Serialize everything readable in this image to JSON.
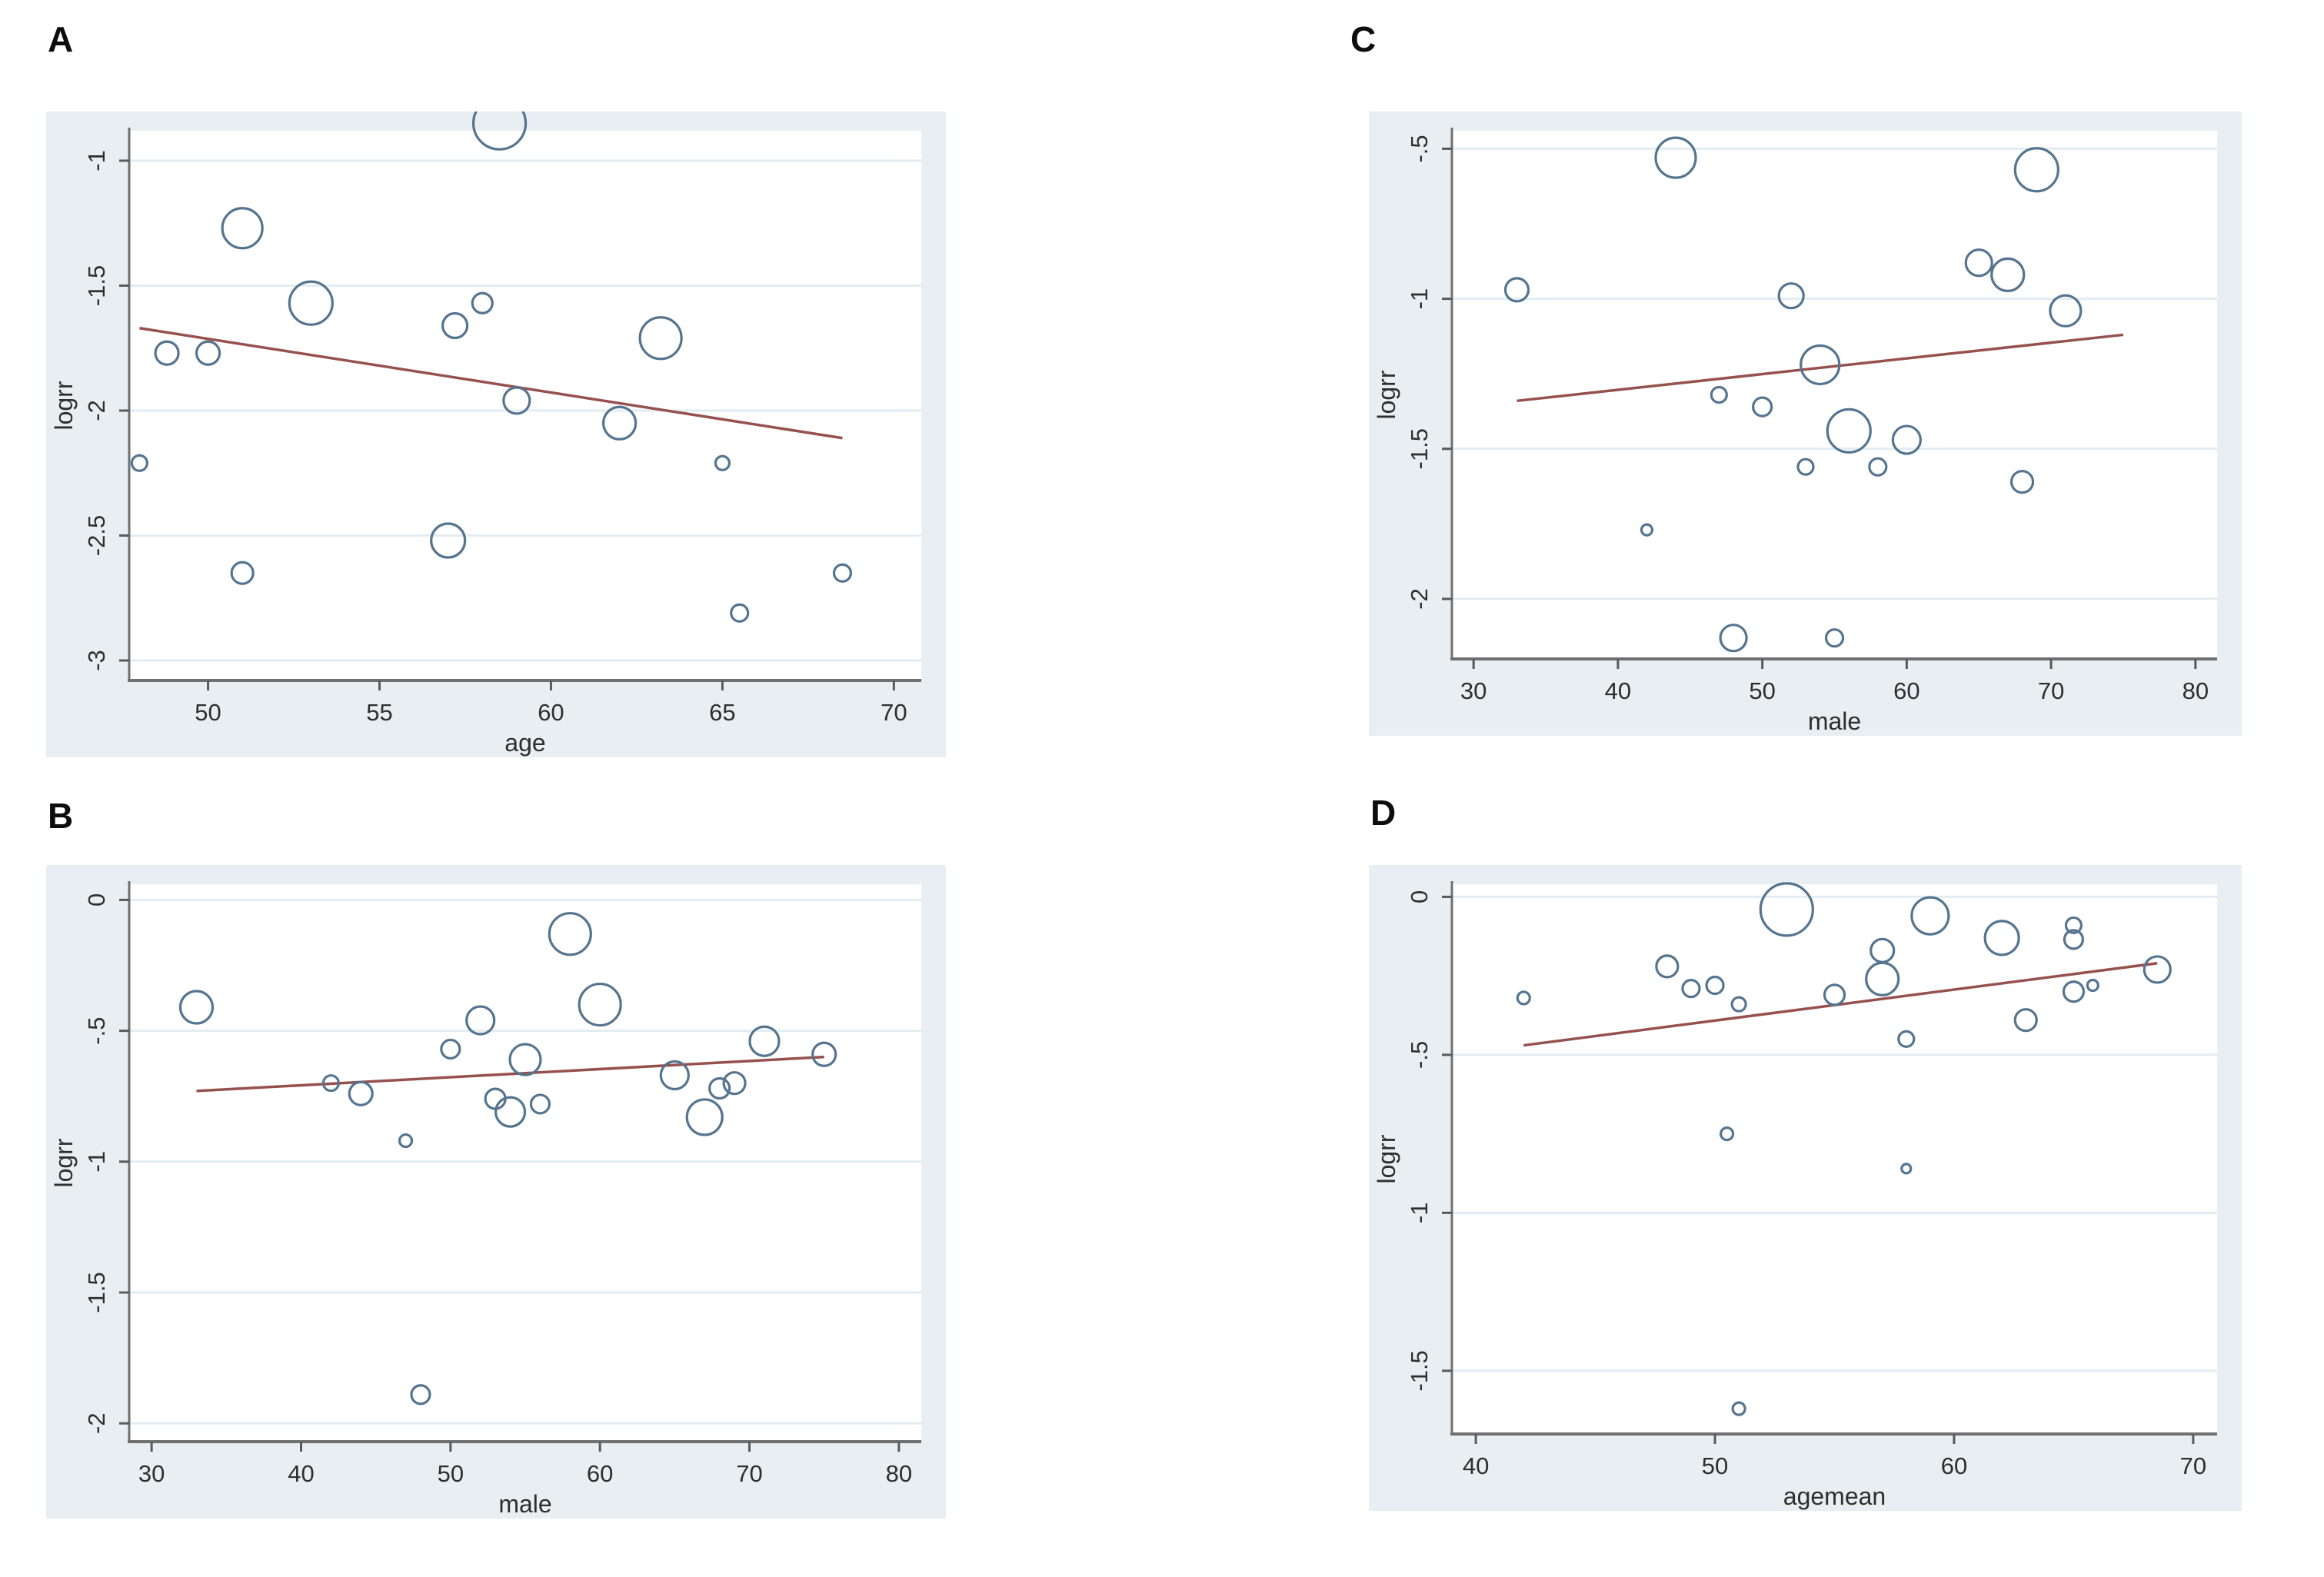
{
  "figure": {
    "description": "Four-panel meta-regression bubble plot (Stata style)",
    "panels": [
      "A",
      "B",
      "C",
      "D"
    ]
  },
  "colors": {
    "panel_background": "#e8eef1",
    "plot_background": "#ffffff",
    "grid_line": "#e2edf3",
    "axis_line": "#707070",
    "tick_mark": "#5a5a5a",
    "tick_text": "#2e2e2e",
    "axis_title_text": "#2e2e2e",
    "bubble_stroke": "#55748f",
    "regression_line": "#96514f",
    "panel_letter": "#0d0d0d"
  },
  "chart_data": [
    {
      "id": "A",
      "panel_label": "A",
      "type": "scatter",
      "subtype": "bubble",
      "title": "",
      "xlabel": "age",
      "ylabel": "logrr",
      "xlim": [
        47.7,
        70.8
      ],
      "ylim": [
        -3.08,
        -0.88
      ],
      "xticks": [
        50,
        55,
        60,
        65,
        70
      ],
      "ytick_values": [
        -1,
        -1.5,
        -2,
        -2.5,
        -3
      ],
      "ytick_labels": [
        "-1",
        "-1.5",
        "-2",
        "-2.5",
        "-3"
      ],
      "grid": true,
      "legend": "none",
      "regression": {
        "x": [
          48,
          68.5
        ],
        "y": [
          -1.67,
          -2.11
        ]
      },
      "bubbles": [
        [
          58.5,
          -0.85,
          34
        ],
        [
          51,
          -1.27,
          26
        ],
        [
          53,
          -1.57,
          28
        ],
        [
          58,
          -1.57,
          13
        ],
        [
          57.2,
          -1.66,
          16
        ],
        [
          63.2,
          -1.71,
          27
        ],
        [
          48.8,
          -1.77,
          15
        ],
        [
          50,
          -1.77,
          15
        ],
        [
          59,
          -1.96,
          17
        ],
        [
          62,
          -2.05,
          21
        ],
        [
          48,
          -2.21,
          10
        ],
        [
          65,
          -2.21,
          9
        ],
        [
          57,
          -2.52,
          22
        ],
        [
          51,
          -2.65,
          14
        ],
        [
          65.5,
          -2.81,
          11
        ],
        [
          68.5,
          -2.65,
          11
        ]
      ]
    },
    {
      "id": "B",
      "panel_label": "B",
      "type": "scatter",
      "subtype": "bubble",
      "title": "",
      "xlabel": "male",
      "ylabel": "logrr",
      "xlim": [
        28.5,
        81.5
      ],
      "ylim": [
        -2.07,
        0.06
      ],
      "xticks": [
        30,
        40,
        50,
        60,
        70,
        80
      ],
      "ytick_values": [
        0,
        -0.5,
        -1,
        -1.5,
        -2
      ],
      "ytick_labels": [
        "0",
        "-.5",
        "-1",
        "-1.5",
        "-2"
      ],
      "grid": true,
      "legend": "none",
      "regression": {
        "x": [
          33,
          75
        ],
        "y": [
          -0.73,
          -0.6
        ]
      },
      "bubbles": [
        [
          33,
          -0.41,
          21
        ],
        [
          58,
          -0.13,
          27
        ],
        [
          60,
          -0.4,
          27
        ],
        [
          52,
          -0.46,
          18
        ],
        [
          50,
          -0.57,
          12
        ],
        [
          55,
          -0.61,
          20
        ],
        [
          42,
          -0.7,
          10
        ],
        [
          44,
          -0.74,
          15
        ],
        [
          53,
          -0.76,
          13
        ],
        [
          54,
          -0.81,
          19
        ],
        [
          56,
          -0.78,
          12
        ],
        [
          47,
          -0.92,
          8
        ],
        [
          65,
          -0.67,
          18
        ],
        [
          67,
          -0.83,
          23
        ],
        [
          68,
          -0.72,
          13
        ],
        [
          69,
          -0.7,
          14
        ],
        [
          71,
          -0.54,
          19
        ],
        [
          75,
          -0.59,
          15
        ],
        [
          48,
          -1.89,
          12
        ]
      ]
    },
    {
      "id": "C",
      "panel_label": "C",
      "type": "scatter",
      "subtype": "bubble",
      "title": "",
      "xlabel": "male",
      "ylabel": "logrr",
      "xlim": [
        28.5,
        81.5
      ],
      "ylim": [
        -2.2,
        -0.44
      ],
      "xticks": [
        30,
        40,
        50,
        60,
        70,
        80
      ],
      "ytick_values": [
        -0.5,
        -1,
        -1.5,
        -2
      ],
      "ytick_labels": [
        "-.5",
        "-1",
        "-1.5",
        "-2"
      ],
      "grid": true,
      "legend": "none",
      "regression": {
        "x": [
          33,
          75
        ],
        "y": [
          -1.34,
          -1.12
        ]
      },
      "bubbles": [
        [
          44,
          -0.53,
          26
        ],
        [
          69,
          -0.57,
          28
        ],
        [
          65,
          -0.88,
          17
        ],
        [
          67,
          -0.92,
          21
        ],
        [
          33,
          -0.97,
          15
        ],
        [
          52,
          -0.99,
          16
        ],
        [
          71,
          -1.04,
          20
        ],
        [
          54,
          -1.22,
          25
        ],
        [
          47,
          -1.32,
          10
        ],
        [
          50,
          -1.36,
          12
        ],
        [
          56,
          -1.44,
          28
        ],
        [
          60,
          -1.47,
          18
        ],
        [
          53,
          -1.56,
          10
        ],
        [
          58,
          -1.56,
          11
        ],
        [
          68,
          -1.61,
          14
        ],
        [
          42,
          -1.77,
          7
        ],
        [
          48,
          -2.13,
          17
        ],
        [
          55,
          -2.13,
          11
        ]
      ]
    },
    {
      "id": "D",
      "panel_label": "D",
      "type": "scatter",
      "subtype": "bubble",
      "title": "",
      "xlabel": "agemean",
      "ylabel": "logrr",
      "xlim": [
        39,
        71
      ],
      "ylim": [
        -1.7,
        0.04
      ],
      "xticks": [
        40,
        50,
        60,
        70
      ],
      "ytick_values": [
        0,
        -0.5,
        -1,
        -1.5
      ],
      "ytick_labels": [
        "0",
        "-.5",
        "-1",
        "-1.5"
      ],
      "grid": true,
      "legend": "none",
      "regression": {
        "x": [
          42,
          68.5
        ],
        "y": [
          -0.47,
          -0.21
        ]
      },
      "bubbles": [
        [
          53,
          -0.04,
          34
        ],
        [
          59,
          -0.06,
          24
        ],
        [
          62,
          -0.13,
          22
        ],
        [
          65,
          -0.09,
          10
        ],
        [
          65,
          -0.135,
          12
        ],
        [
          57,
          -0.17,
          15
        ],
        [
          48,
          -0.22,
          14
        ],
        [
          57,
          -0.26,
          21
        ],
        [
          68.5,
          -0.23,
          17
        ],
        [
          49,
          -0.29,
          11
        ],
        [
          50,
          -0.28,
          11
        ],
        [
          55,
          -0.31,
          13
        ],
        [
          42,
          -0.32,
          8
        ],
        [
          51,
          -0.34,
          9
        ],
        [
          65,
          -0.3,
          13
        ],
        [
          65.8,
          -0.28,
          7
        ],
        [
          63,
          -0.39,
          14
        ],
        [
          58,
          -0.45,
          10
        ],
        [
          50.5,
          -0.75,
          8
        ],
        [
          58,
          -0.86,
          6
        ],
        [
          51,
          -1.62,
          8
        ]
      ]
    }
  ]
}
